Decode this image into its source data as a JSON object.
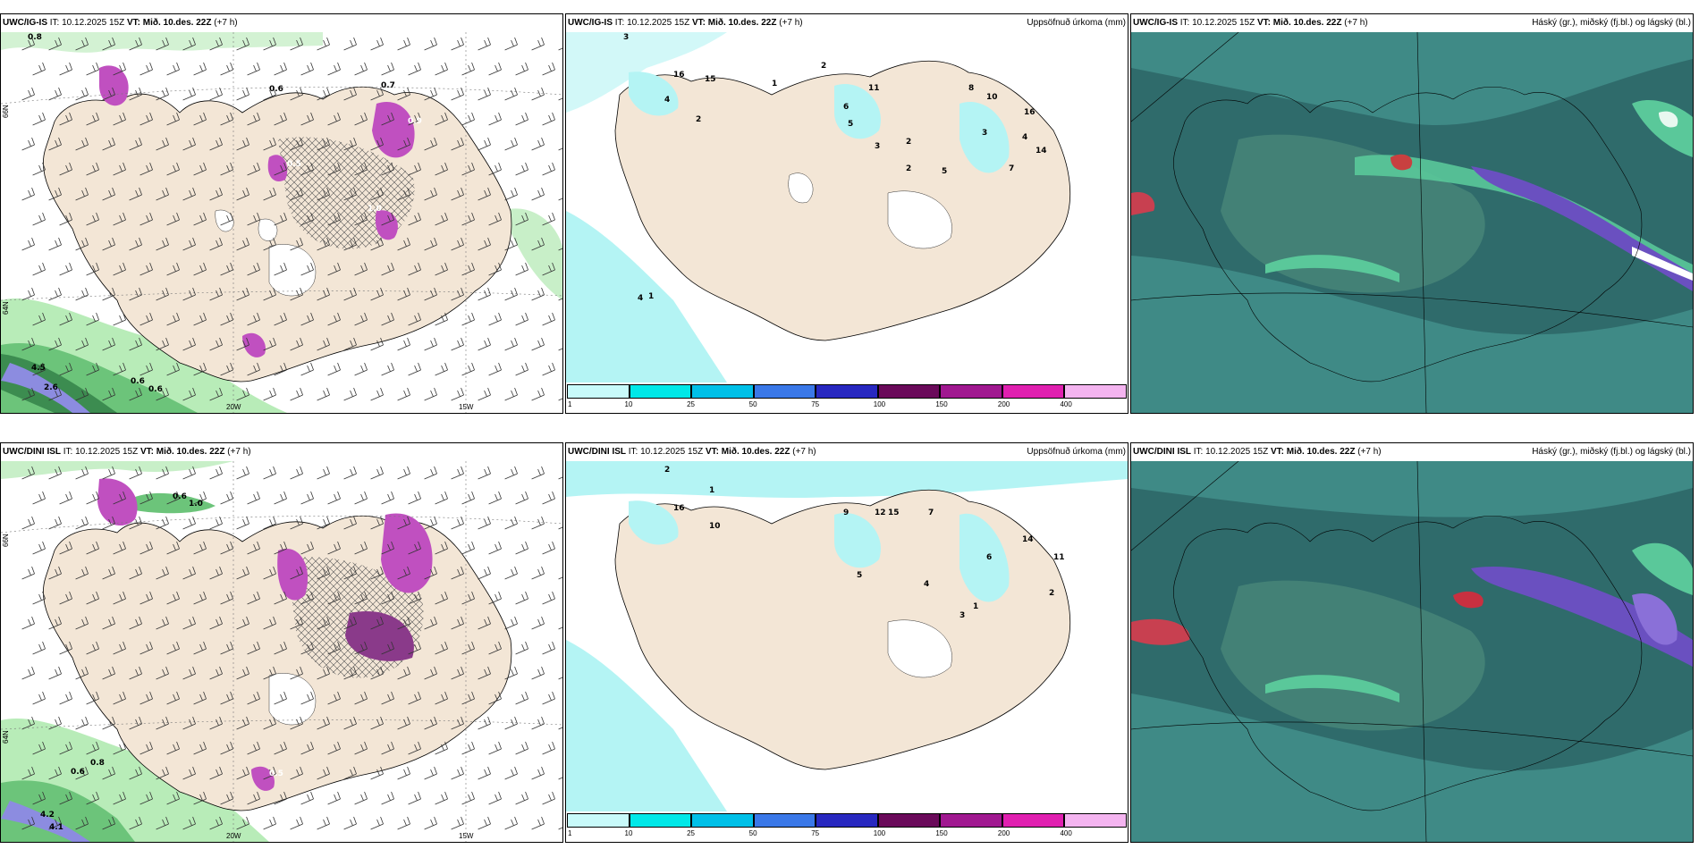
{
  "panels": [
    {
      "model": "UWC/IG-IS",
      "it_label": "IT:",
      "it": "10.12.2025 15Z",
      "vt_label": "VT:",
      "vt": "Mið. 10.des. 22Z",
      "lead": "(+7 h)",
      "right_title": ""
    },
    {
      "model": "UWC/IG-IS",
      "it_label": "IT:",
      "it": "10.12.2025 15Z",
      "vt_label": "VT:",
      "vt": "Mið. 10.des. 22Z",
      "lead": "(+7 h)",
      "right_title": "Uppsöfnuð úrkoma (mm)"
    },
    {
      "model": "UWC/IG-IS",
      "it_label": "IT:",
      "it": "10.12.2025 15Z",
      "vt_label": "VT:",
      "vt": "Mið. 10.des. 22Z",
      "lead": "(+7 h)",
      "right_title": "Háský (gr.), miðský (fj.bl.) og lágský (bl.)"
    },
    {
      "model": "UWC/DINI ISL",
      "it_label": "IT:",
      "it": "10.12.2025 15Z",
      "vt_label": "VT:",
      "vt": "Mið. 10.des. 22Z",
      "lead": "(+7 h)",
      "right_title": ""
    },
    {
      "model": "UWC/DINI ISL",
      "it_label": "IT:",
      "it": "10.12.2025 15Z",
      "vt_label": "VT:",
      "vt": "Mið. 10.des. 22Z",
      "lead": "(+7 h)",
      "right_title": "Uppsöfnuð úrkoma (mm)"
    },
    {
      "model": "UWC/DINI ISL",
      "it_label": "IT:",
      "it": "10.12.2025 15Z",
      "vt_label": "VT:",
      "vt": "Mið. 10.des. 22Z",
      "lead": "(+7 h)",
      "right_title": "Háský (gr.), miðský (fj.bl.) og lágský (bl.)"
    }
  ],
  "axis_labels": {
    "lat_66": "66N",
    "lat_64": "64N",
    "lon_20": "20W",
    "lon_15": "15W"
  },
  "colorbar": {
    "ticks": [
      "1",
      "10",
      "25",
      "50",
      "75",
      "100",
      "150",
      "200",
      "400"
    ],
    "colors": [
      "#c8fafa",
      "#00e8e8",
      "#00c0e8",
      "#3a78e8",
      "#2828c0",
      "#6a0a5a",
      "#a01890",
      "#e020b0",
      "#f4b4f0"
    ]
  },
  "top_left_labels": [
    "0.8",
    "0.7",
    "0.6",
    "0.5",
    "0.9",
    "1.0",
    "4.5",
    "2.6",
    "0.6",
    "0.6"
  ],
  "top_mid_labels": [
    "3",
    "2",
    "1",
    "16",
    "15",
    "4",
    "2",
    "6",
    "5",
    "11",
    "8",
    "10",
    "3",
    "7",
    "2",
    "4",
    "14",
    "16",
    "3",
    "5",
    "2",
    "4",
    "1"
  ],
  "bottom_left_labels": [
    "0.6",
    "1.0",
    "0.8",
    "0.6",
    "4.2",
    "4.1",
    "0.5"
  ],
  "bottom_mid_labels": [
    "2",
    "1",
    "16",
    "10",
    "12",
    "15",
    "9",
    "5",
    "7",
    "6",
    "14",
    "11",
    "3",
    "1",
    "2",
    "4"
  ],
  "colors": {
    "land": "#f3e6d6",
    "precip_light": "#b4f4f4",
    "green_light": "#b8ecb8",
    "green_mid": "#6cc47a",
    "purple": "#c050c0",
    "cloud_dark": "#2f6b6b",
    "cloud_mid": "#3f8a86",
    "cloud_violet": "#6a50c0"
  }
}
